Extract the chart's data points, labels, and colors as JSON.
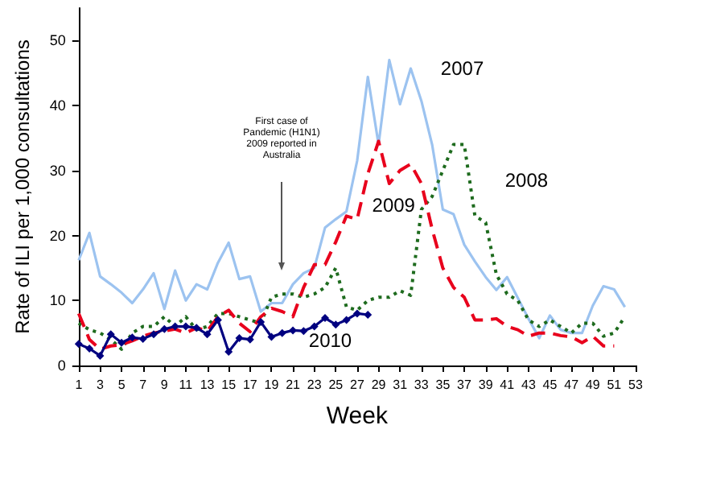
{
  "chart_data": {
    "type": "line",
    "xlabel": "Week",
    "ylabel": "Rate of ILI per 1,000 consultations",
    "x": [
      1,
      2,
      3,
      4,
      5,
      6,
      7,
      8,
      9,
      10,
      11,
      12,
      13,
      14,
      15,
      16,
      17,
      18,
      19,
      20,
      21,
      22,
      23,
      24,
      25,
      26,
      27,
      28,
      29,
      30,
      31,
      32,
      33,
      34,
      35,
      36,
      37,
      38,
      39,
      40,
      41,
      42,
      43,
      44,
      45,
      46,
      47,
      48,
      49,
      50,
      51,
      52
    ],
    "xlim": [
      1,
      53
    ],
    "xticks": [
      1,
      3,
      5,
      7,
      9,
      11,
      13,
      15,
      17,
      19,
      21,
      23,
      25,
      27,
      29,
      31,
      33,
      35,
      37,
      39,
      41,
      43,
      45,
      47,
      49,
      51,
      53
    ],
    "ylim": [
      0,
      55
    ],
    "yticks": [
      0,
      10,
      20,
      30,
      40,
      50
    ],
    "grid": false,
    "legend": false,
    "series": [
      {
        "name": "2007",
        "color": "#9cc3f0",
        "line_style": "solid",
        "marker": "none",
        "values": [
          16.2,
          20.4,
          13.7,
          12.5,
          11.2,
          9.6,
          11.7,
          14.2,
          8.7,
          14.6,
          10,
          12.5,
          11.7,
          15.8,
          18.9,
          13.3,
          13.7,
          8.3,
          9.6,
          9.6,
          12.5,
          14.2,
          15,
          21.2,
          22.5,
          23.7,
          31.5,
          44.4,
          34,
          47,
          40.2,
          45.7,
          40.7,
          34,
          24,
          23.3,
          18.6,
          16,
          13.6,
          11.6,
          13.6,
          10.4,
          7.2,
          4.2,
          7.7,
          5.5,
          5,
          5,
          9.2,
          12.2,
          11.7,
          9
        ]
      },
      {
        "name": "2008",
        "color": "#1e6b1e",
        "line_style": "dotted",
        "marker": "none",
        "values": [
          6.5,
          5.5,
          5,
          4,
          2.5,
          5,
          6,
          6,
          7.5,
          6,
          7.5,
          5.5,
          6,
          8,
          8,
          7.5,
          7,
          6.5,
          10.5,
          11,
          11,
          10.5,
          11,
          12,
          15,
          9,
          8.5,
          10,
          10.5,
          10.5,
          11.5,
          10.8,
          24,
          26,
          30,
          34,
          34,
          23,
          22,
          14,
          11,
          10,
          7,
          6,
          7,
          6,
          5,
          6.5,
          6.5,
          4.5,
          5,
          7.5
        ]
      },
      {
        "name": "2009",
        "color": "#e8001c",
        "line_style": "dashed",
        "marker": "none",
        "values": [
          8,
          4,
          2.5,
          3,
          3.2,
          3.8,
          4.5,
          5,
          5.3,
          5.6,
          5,
          5.8,
          5.3,
          7.5,
          8.5,
          6.5,
          5.2,
          7.5,
          8.8,
          8.3,
          7.5,
          12,
          15.5,
          15.5,
          19,
          23,
          22.5,
          29.5,
          34.5,
          28,
          30,
          31,
          28,
          21,
          15,
          12,
          10.5,
          7,
          7,
          7.2,
          6,
          5.5,
          4.5,
          5,
          5,
          4.6,
          4.4,
          3.5,
          4.5,
          3,
          3,
          null
        ]
      },
      {
        "name": "2010",
        "color": "#000080",
        "line_style": "solid",
        "marker": "diamond",
        "values": [
          3.3,
          2.6,
          1.5,
          4.8,
          3.5,
          4.3,
          4.1,
          4.8,
          5.6,
          6,
          6,
          5.8,
          4.8,
          7,
          2.1,
          4.2,
          4,
          6.7,
          4.4,
          5,
          5.4,
          5.3,
          6,
          7.3,
          6.3,
          7,
          8,
          7.8,
          null,
          null,
          null,
          null,
          null,
          null,
          null,
          null,
          null,
          null,
          null,
          null,
          null,
          null,
          null,
          null,
          null,
          null,
          null,
          null,
          null,
          null,
          null,
          null
        ]
      }
    ],
    "annotations": [
      "First case of Pandemic (H1N1) 2009 reported in Australia"
    ]
  }
}
